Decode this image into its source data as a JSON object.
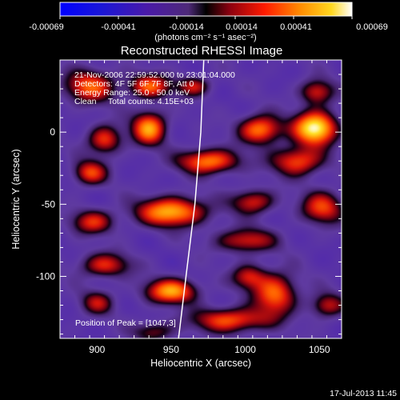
{
  "chart_data": {
    "type": "heatmap",
    "title": "Reconstructed RHESSI Image",
    "xlabel": "Heliocentric X (arcsec)",
    "ylabel": "Heliocentric Y (arcsec)",
    "xlim": [
      875,
      1065
    ],
    "ylim": [
      -143,
      50
    ],
    "x_ticks": [
      900,
      950,
      1000,
      1050
    ],
    "y_ticks": [
      -100,
      -50,
      0
    ],
    "colorbar": {
      "ticks": [
        "-0.00069",
        "-0.00041",
        "-0.00014",
        "0.00014",
        "0.00041",
        "0.00069"
      ],
      "min": -0.00069,
      "max": 0.00069,
      "unit_label": "(photons cm⁻² s⁻¹ asec⁻²)"
    },
    "annotations": [
      "21-Nov-2006 22:59:52.000 to 23:01:04.000",
      "Detectors: 4F 5F 6F 7F 8F, Att 0",
      "Energy Range: 25.0 - 50.0 keV",
      "Clean     Total counts: 4.15E+03"
    ],
    "peak_label": "Position of Peak = [1047,3]",
    "peak_position": [
      1047,
      3
    ],
    "limb_curve": [
      [
        972,
        50
      ],
      [
        970,
        0
      ],
      [
        966,
        -50
      ],
      [
        960,
        -100
      ],
      [
        955,
        -143
      ]
    ],
    "blobs": [
      {
        "x": 1047,
        "y": 3,
        "sx": 10,
        "sy": 8,
        "a": 1.0
      },
      {
        "x": 1010,
        "y": 2,
        "sx": 10,
        "sy": 7,
        "a": 0.7
      },
      {
        "x": 1048,
        "y": 28,
        "sx": 8,
        "sy": 6,
        "a": 0.5
      },
      {
        "x": 895,
        "y": 32,
        "sx": 12,
        "sy": 8,
        "a": 0.6
      },
      {
        "x": 935,
        "y": 32,
        "sx": 10,
        "sy": 6,
        "a": 0.6
      },
      {
        "x": 935,
        "y": 3,
        "sx": 8,
        "sy": 8,
        "a": 0.75
      },
      {
        "x": 905,
        "y": -5,
        "sx": 8,
        "sy": 7,
        "a": 0.55
      },
      {
        "x": 975,
        "y": -20,
        "sx": 14,
        "sy": 6,
        "a": 0.7
      },
      {
        "x": 1035,
        "y": -20,
        "sx": 12,
        "sy": 7,
        "a": 0.6
      },
      {
        "x": 895,
        "y": -28,
        "sx": 8,
        "sy": 6,
        "a": 0.55
      },
      {
        "x": 950,
        "y": -55,
        "sx": 16,
        "sy": 7,
        "a": 0.8
      },
      {
        "x": 1005,
        "y": -48,
        "sx": 10,
        "sy": 6,
        "a": 0.5
      },
      {
        "x": 1052,
        "y": -52,
        "sx": 10,
        "sy": 8,
        "a": 0.55
      },
      {
        "x": 897,
        "y": -62,
        "sx": 10,
        "sy": 6,
        "a": 0.5
      },
      {
        "x": 1000,
        "y": -75,
        "sx": 14,
        "sy": 6,
        "a": 0.5
      },
      {
        "x": 905,
        "y": -92,
        "sx": 12,
        "sy": 6,
        "a": 0.5
      },
      {
        "x": 950,
        "y": -110,
        "sx": 12,
        "sy": 6,
        "a": 0.75
      },
      {
        "x": 1020,
        "y": -112,
        "sx": 10,
        "sy": 10,
        "a": 0.65
      },
      {
        "x": 1002,
        "y": -100,
        "sx": 8,
        "sy": 6,
        "a": 0.45
      },
      {
        "x": 990,
        "y": -130,
        "sx": 18,
        "sy": 6,
        "a": 0.6
      },
      {
        "x": 1055,
        "y": -120,
        "sx": 8,
        "sy": 6,
        "a": 0.45
      },
      {
        "x": 965,
        "y": 32,
        "sx": 8,
        "sy": 5,
        "a": 0.45
      },
      {
        "x": 900,
        "y": -118,
        "sx": 8,
        "sy": 6,
        "a": 0.4
      },
      {
        "x": 938,
        "y": -138,
        "sx": 10,
        "sy": 5,
        "a": 0.35
      }
    ]
  },
  "footer": {
    "timestamp": "17-Jul-2013 11:45"
  }
}
